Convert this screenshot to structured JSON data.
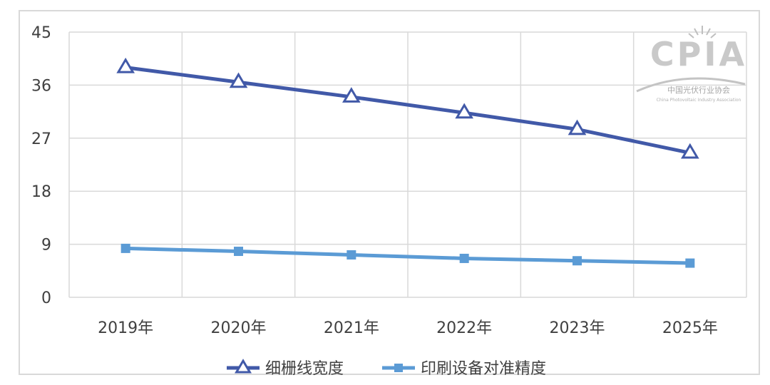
{
  "logo": {
    "name": "CPIA",
    "subtitle_cn": "中国光伏行业协会",
    "subtitle_en": "China Photovoltaic Industry Association"
  },
  "colors": {
    "series1": "#4159a8",
    "series2": "#5b9bd5",
    "grid": "#d9d9d9",
    "text": "#404040"
  },
  "chart_data": {
    "type": "line",
    "categories": [
      "2019年",
      "2020年",
      "2021年",
      "2022年",
      "2023年",
      "2025年"
    ],
    "series": [
      {
        "name": "细栅线宽度",
        "marker": "triangle",
        "values": [
          39,
          36.5,
          34,
          31.3,
          28.5,
          24.5
        ]
      },
      {
        "name": "印刷设备对准精度",
        "marker": "square",
        "values": [
          8.3,
          7.8,
          7.2,
          6.6,
          6.2,
          5.8
        ]
      }
    ],
    "yticks": [
      0,
      9,
      18,
      27,
      36,
      45
    ],
    "ylim": [
      0,
      45
    ],
    "grid": true,
    "legend_position": "bottom"
  }
}
